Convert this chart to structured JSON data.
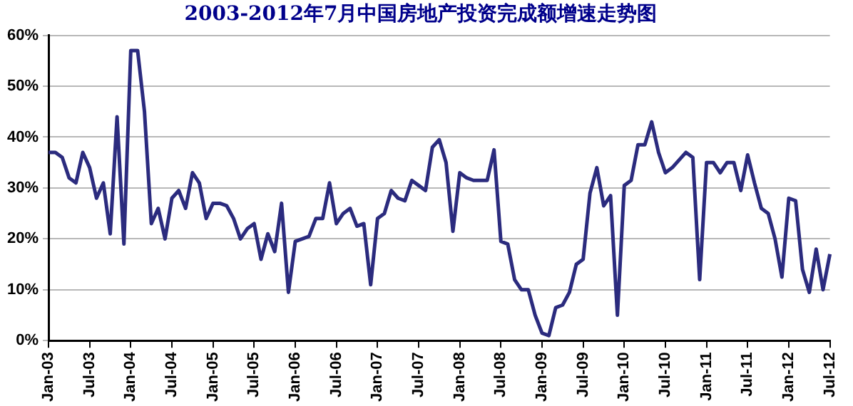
{
  "chart_data": {
    "type": "line",
    "title": "2003-2012年7月中国房地产投资完成额增速走势图",
    "categories": [
      "Jan-03",
      null,
      null,
      null,
      null,
      null,
      "Jul-03",
      null,
      null,
      null,
      null,
      null,
      "Jan-04",
      null,
      null,
      null,
      null,
      null,
      "Jul-04",
      null,
      null,
      null,
      null,
      null,
      "Jan-05",
      null,
      null,
      null,
      null,
      null,
      "Jul-05",
      null,
      null,
      null,
      null,
      null,
      "Jan-06",
      null,
      null,
      null,
      null,
      null,
      "Jul-06",
      null,
      null,
      null,
      null,
      null,
      "Jan-07",
      null,
      null,
      null,
      null,
      null,
      "Jul-07",
      null,
      null,
      null,
      null,
      null,
      "Jan-08",
      null,
      null,
      null,
      null,
      null,
      "Jul-08",
      null,
      null,
      null,
      null,
      null,
      "Jan-09",
      null,
      null,
      null,
      null,
      null,
      "Jul-09",
      null,
      null,
      null,
      null,
      null,
      "Jan-10",
      null,
      null,
      null,
      null,
      null,
      "Jul-10",
      null,
      null,
      null,
      null,
      null,
      "Jan-11",
      null,
      null,
      null,
      null,
      null,
      "Jul-11",
      null,
      null,
      null,
      null,
      null,
      "Jan-12",
      null,
      null,
      null,
      null,
      null,
      "Jul-12"
    ],
    "series": [
      {
        "color": "#2b2b7e",
        "values": [
          37,
          37,
          36,
          32,
          31,
          37,
          34,
          28,
          31,
          21,
          44,
          19,
          57,
          57,
          45,
          23,
          26,
          20,
          28,
          29.5,
          26,
          33,
          31,
          24,
          27,
          27,
          26.5,
          24,
          20,
          22,
          23,
          16,
          21,
          17.5,
          27,
          9.5,
          19.5,
          20,
          20.5,
          24,
          24,
          31,
          23,
          25,
          26,
          22.5,
          23,
          11,
          24,
          25,
          29.5,
          28,
          27.5,
          31.5,
          30.5,
          29.5,
          38,
          39.5,
          35,
          21.5,
          33,
          32,
          31.5,
          31.5,
          31.5,
          37.5,
          19.5,
          19,
          12,
          10,
          10,
          5,
          1.5,
          1,
          6.5,
          7,
          9.5,
          15,
          16,
          29,
          34,
          26.5,
          28.5,
          5,
          30.5,
          31.5,
          38.5,
          38.5,
          43,
          37,
          33,
          34,
          35.5,
          37,
          36,
          12,
          35,
          35,
          33,
          35,
          35,
          29.5,
          36.5,
          31,
          26,
          25,
          20,
          12.5,
          28,
          27.5,
          14,
          9.5,
          18,
          10,
          17
        ]
      }
    ],
    "ylim": [
      0,
      60
    ],
    "yticks": [
      {
        "value": 0,
        "label": "0%"
      },
      {
        "value": 10,
        "label": "10%"
      },
      {
        "value": 20,
        "label": "20%"
      },
      {
        "value": 30,
        "label": "30%"
      },
      {
        "value": 40,
        "label": "40%"
      },
      {
        "value": 50,
        "label": "50%"
      },
      {
        "value": 60,
        "label": "60%"
      }
    ],
    "grid": "y",
    "legend": false,
    "marker": "none",
    "line_style": "solid"
  }
}
